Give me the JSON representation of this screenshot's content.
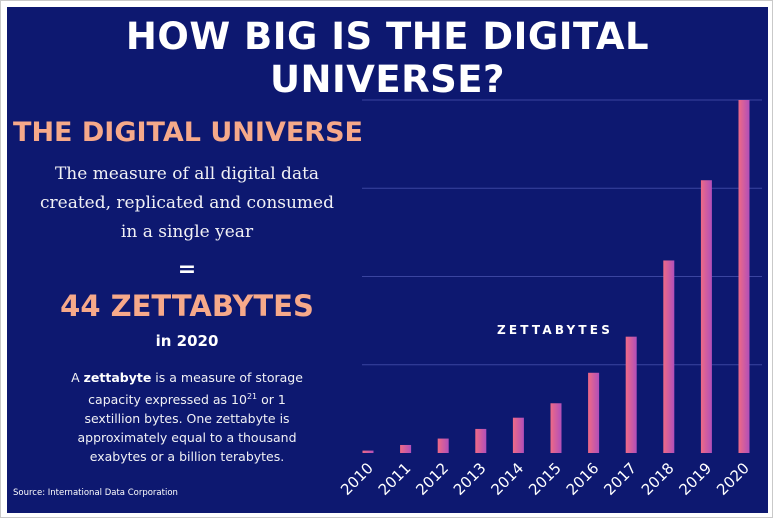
{
  "header": {
    "title": "HOW BIG IS THE DIGITAL UNIVERSE?"
  },
  "info": {
    "subtitle": "THE DIGITAL UNIVERSE",
    "description_lines": [
      "The measure of all digital data",
      "created, replicated and consumed",
      "in a single year"
    ],
    "equals": "=",
    "headline_value": "44 ZETTABYTES",
    "headline_year": "in 2020",
    "note_prefix": "A ",
    "note_term": "zettabyte",
    "note_part1": " is a measure of storage capacity expressed as 10",
    "note_exponent": "21",
    "note_part2": " or 1 sextillion bytes. One zettabyte is approximately equal to a thousand exabytes or a billion terabytes."
  },
  "footer": {
    "source": "Source: International Data Corporation"
  },
  "colors": {
    "background": "#0d1870",
    "accent": "#f6a98a",
    "bar_start": "#ef6a86",
    "bar_end": "#b14fba",
    "gridline": "#3a44a0"
  },
  "chart_data": {
    "type": "bar",
    "ylabel": "ZETTABYTES",
    "categories": [
      "2010",
      "2011",
      "2012",
      "2013",
      "2014",
      "2015",
      "2016",
      "2017",
      "2018",
      "2019",
      "2020"
    ],
    "values": [
      0.3,
      1,
      1.8,
      3,
      4.4,
      6.2,
      10,
      14.5,
      24,
      34,
      44
    ],
    "ylim": [
      0,
      44
    ],
    "grid": true
  }
}
